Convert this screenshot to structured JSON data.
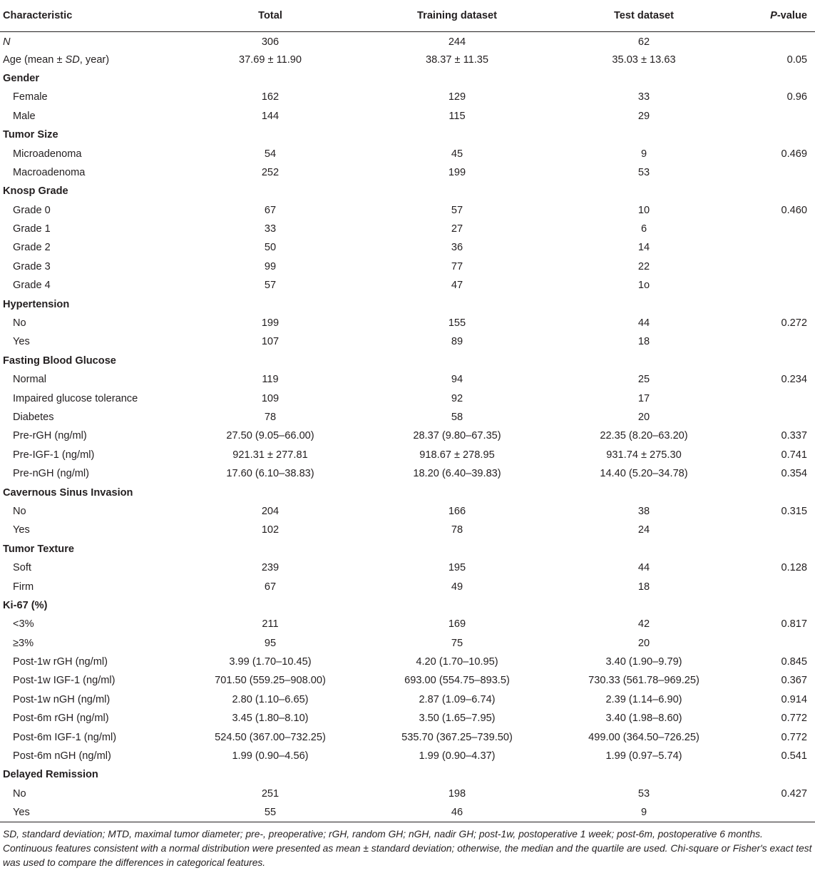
{
  "table": {
    "headers": [
      "Characteristic",
      "Total",
      "Training dataset",
      "Test dataset",
      "P-value"
    ],
    "rows": [
      {
        "label": "N",
        "total": "306",
        "training": "244",
        "test": "62",
        "p": ""
      },
      {
        "label": "Age (mean ± SD, year)",
        "total": "37.69 ± 11.90",
        "training": "38.37 ± 11.35",
        "test": "35.03 ± 13.63",
        "p": "0.05"
      },
      {
        "label": "Gender",
        "total": "",
        "training": "",
        "test": "",
        "p": ""
      },
      {
        "label": "Female",
        "total": "162",
        "training": "129",
        "test": "33",
        "p": "0.96"
      },
      {
        "label": "Male",
        "total": "144",
        "training": "115",
        "test": "29",
        "p": ""
      },
      {
        "label": "Tumor Size",
        "total": "",
        "training": "",
        "test": "",
        "p": ""
      },
      {
        "label": "Microadenoma",
        "total": "54",
        "training": "45",
        "test": "9",
        "p": "0.469"
      },
      {
        "label": "Macroadenoma",
        "total": "252",
        "training": "199",
        "test": "53",
        "p": ""
      },
      {
        "label": "Knosp Grade",
        "total": "",
        "training": "",
        "test": "",
        "p": ""
      },
      {
        "label": "Grade 0",
        "total": "67",
        "training": "57",
        "test": "10",
        "p": "0.460"
      },
      {
        "label": "Grade 1",
        "total": "33",
        "training": "27",
        "test": "6",
        "p": ""
      },
      {
        "label": "Grade 2",
        "total": "50",
        "training": "36",
        "test": "14",
        "p": ""
      },
      {
        "label": "Grade 3",
        "total": "99",
        "training": "77",
        "test": "22",
        "p": ""
      },
      {
        "label": "Grade 4",
        "total": "57",
        "training": "47",
        "test": "1o",
        "p": ""
      },
      {
        "label": "Hypertension",
        "total": "",
        "training": "",
        "test": "",
        "p": ""
      },
      {
        "label": "No",
        "total": "199",
        "training": "155",
        "test": "44",
        "p": "0.272"
      },
      {
        "label": "Yes",
        "total": "107",
        "training": "89",
        "test": "18",
        "p": ""
      },
      {
        "label": "Fasting Blood Glucose",
        "total": "",
        "training": "",
        "test": "",
        "p": ""
      },
      {
        "label": "Normal",
        "total": "119",
        "training": "94",
        "test": "25",
        "p": "0.234"
      },
      {
        "label": "Impaired glucose tolerance",
        "total": "109",
        "training": "92",
        "test": "17",
        "p": ""
      },
      {
        "label": "Diabetes",
        "total": "78",
        "training": "58",
        "test": "20",
        "p": ""
      },
      {
        "label": "Pre-rGH (ng/ml)",
        "total": "27.50 (9.05–66.00)",
        "training": "28.37 (9.80–67.35)",
        "test": "22.35 (8.20–63.20)",
        "p": "0.337"
      },
      {
        "label": "Pre-IGF-1 (ng/ml)",
        "total": "921.31 ± 277.81",
        "training": "918.67 ± 278.95",
        "test": "931.74 ± 275.30",
        "p": "0.741"
      },
      {
        "label": "Pre-nGH (ng/ml)",
        "total": "17.60 (6.10–38.83)",
        "training": "18.20 (6.40–39.83)",
        "test": "14.40 (5.20–34.78)",
        "p": "0.354"
      },
      {
        "label": "Cavernous Sinus Invasion",
        "total": "",
        "training": "",
        "test": "",
        "p": ""
      },
      {
        "label": "No",
        "total": "204",
        "training": "166",
        "test": "38",
        "p": "0.315"
      },
      {
        "label": "Yes",
        "total": "102",
        "training": "78",
        "test": "24",
        "p": ""
      },
      {
        "label": "Tumor Texture",
        "total": "",
        "training": "",
        "test": "",
        "p": ""
      },
      {
        "label": "Soft",
        "total": "239",
        "training": "195",
        "test": "44",
        "p": "0.128"
      },
      {
        "label": "Firm",
        "total": "67",
        "training": "49",
        "test": "18",
        "p": ""
      },
      {
        "label": "Ki-67 (%)",
        "total": "",
        "training": "",
        "test": "",
        "p": ""
      },
      {
        "label": "<3%",
        "total": "211",
        "training": "169",
        "test": "42",
        "p": "0.817"
      },
      {
        "label": "≥3%",
        "total": "95",
        "training": "75",
        "test": "20",
        "p": ""
      },
      {
        "label": "Post-1w rGH (ng/ml)",
        "total": "3.99 (1.70–10.45)",
        "training": "4.20 (1.70–10.95)",
        "test": "3.40 (1.90–9.79)",
        "p": "0.845"
      },
      {
        "label": "Post-1w IGF-1 (ng/ml)",
        "total": "701.50 (559.25–908.00)",
        "training": "693.00 (554.75–893.5)",
        "test": "730.33 (561.78–969.25)",
        "p": "0.367"
      },
      {
        "label": "Post-1w nGH (ng/ml)",
        "total": "2.80 (1.10–6.65)",
        "training": "2.87 (1.09–6.74)",
        "test": "2.39 (1.14–6.90)",
        "p": "0.914"
      },
      {
        "label": "Post-6m rGH (ng/ml)",
        "total": "3.45 (1.80–8.10)",
        "training": "3.50 (1.65–7.95)",
        "test": "3.40 (1.98–8.60)",
        "p": "0.772"
      },
      {
        "label": "Post-6m IGF-1 (ng/ml)",
        "total": "524.50 (367.00–732.25)",
        "training": "535.70 (367.25–739.50)",
        "test": "499.00 (364.50–726.25)",
        "p": "0.772"
      },
      {
        "label": "Post-6m nGH (ng/ml)",
        "total": "1.99 (0.90–4.56)",
        "training": "1.99 (0.90–4.37)",
        "test": "1.99 (0.97–5.74)",
        "p": "0.541"
      },
      {
        "label": "Delayed Remission",
        "total": "",
        "training": "",
        "test": "",
        "p": ""
      },
      {
        "label": "No",
        "total": "251",
        "training": "198",
        "test": "53",
        "p": "0.427"
      },
      {
        "label": "Yes",
        "total": "55",
        "training": "46",
        "test": "9",
        "p": ""
      }
    ]
  },
  "footnote": {
    "line1": "SD, standard deviation; MTD, maximal tumor diameter; pre-, preoperative; rGH, random GH; nGH, nadir GH; post-1w, postoperative 1 week; post-6m, postoperative 6 months.",
    "line2": "Continuous features consistent with a normal distribution were presented as mean ± standard deviation; otherwise, the median and the quartile are used. Chi-square or Fisher's exact test was used to compare the differences in categorical features."
  }
}
